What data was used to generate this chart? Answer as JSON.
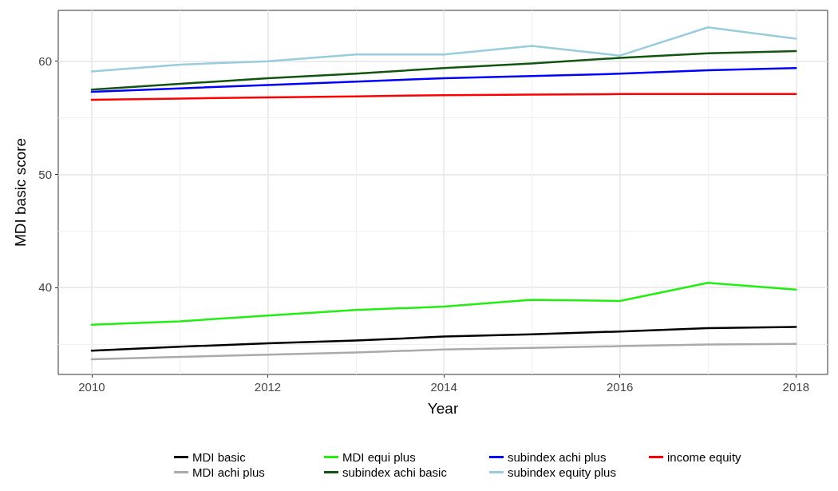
{
  "chart_data": {
    "type": "line",
    "xlabel": "Year",
    "ylabel": "MDI basic score",
    "x": [
      2010,
      2011,
      2012,
      2013,
      2014,
      2015,
      2016,
      2017,
      2018
    ],
    "series": [
      {
        "name": "MDI basic",
        "color": "#000000",
        "values": [
          34.4,
          34.75,
          35.05,
          35.3,
          35.65,
          35.85,
          36.1,
          36.4,
          36.5
        ]
      },
      {
        "name": "MDI achi plus",
        "color": "#aaaaaa",
        "values": [
          33.65,
          33.85,
          34.05,
          34.25,
          34.5,
          34.65,
          34.8,
          34.95,
          35.0
        ]
      },
      {
        "name": "MDI equi plus",
        "color": "#22ee11",
        "values": [
          36.7,
          37.0,
          37.5,
          38.0,
          38.3,
          38.9,
          38.8,
          40.4,
          39.8
        ]
      },
      {
        "name": "subindex achi basic",
        "color": "#115511",
        "values": [
          57.5,
          58.0,
          58.5,
          58.9,
          59.4,
          59.8,
          60.3,
          60.7,
          60.9
        ]
      },
      {
        "name": "subindex achi plus",
        "color": "#0000ff",
        "values": [
          57.3,
          57.6,
          57.9,
          58.2,
          58.5,
          58.7,
          58.9,
          59.2,
          59.4
        ]
      },
      {
        "name": "subindex equity plus",
        "color": "#99ccdd",
        "values": [
          59.1,
          59.7,
          60.0,
          60.6,
          60.6,
          61.35,
          60.5,
          63.0,
          62.0
        ]
      },
      {
        "name": "income equity",
        "color": "#ff0000",
        "values": [
          56.6,
          56.7,
          56.8,
          56.9,
          57.0,
          57.05,
          57.1,
          57.1,
          57.1
        ]
      }
    ],
    "xlim": [
      2009.62,
      2018.36
    ],
    "xticks": [
      2010,
      2012,
      2014,
      2016,
      2018
    ],
    "ylim": [
      32.3,
      64.5
    ],
    "yticks": [
      40,
      50,
      60
    ],
    "grid": true,
    "legend": "bottom",
    "marker": "none",
    "line_style": "solid"
  }
}
